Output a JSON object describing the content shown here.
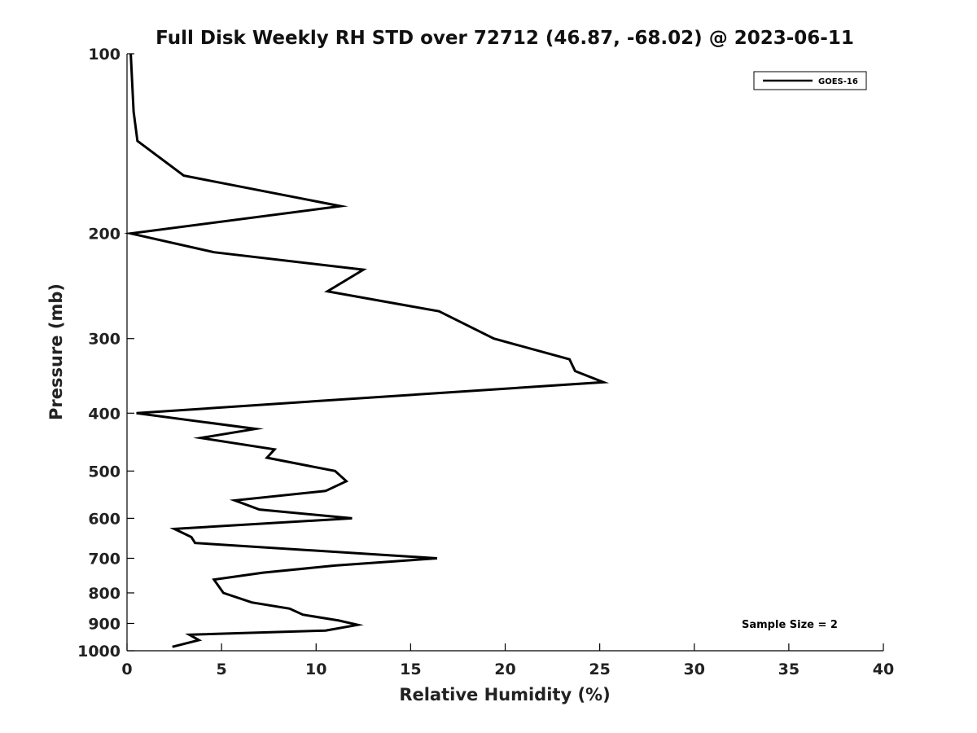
{
  "chart_data": {
    "type": "line",
    "title": "Full Disk Weekly RH STD over 72712 (46.87, -68.02) @ 2023-06-11",
    "xlabel": "Relative Humidity (%)",
    "ylabel": "Pressure (mb)",
    "xlim": [
      0,
      40
    ],
    "ylim": [
      100,
      1000
    ],
    "y_scale": "log",
    "y_reversed": true,
    "x_ticks": [
      "0",
      "5",
      "10",
      "15",
      "20",
      "25",
      "30",
      "35",
      "40"
    ],
    "y_ticks": [
      "100",
      "200",
      "300",
      "400",
      "500",
      "600",
      "700",
      "800",
      "900",
      "1000"
    ],
    "grid": false,
    "legend_position": "top-right",
    "series": [
      {
        "name": "GOES-16",
        "color": "#000000",
        "points": [
          [
            0.2,
            100
          ],
          [
            0.35,
            125
          ],
          [
            0.55,
            140
          ],
          [
            3.0,
            160
          ],
          [
            11.3,
            180
          ],
          [
            0.2,
            200
          ],
          [
            4.6,
            215
          ],
          [
            12.5,
            230
          ],
          [
            10.6,
            250
          ],
          [
            16.5,
            270
          ],
          [
            19.4,
            300
          ],
          [
            23.4,
            325
          ],
          [
            23.7,
            340
          ],
          [
            25.2,
            355
          ],
          [
            11.0,
            380
          ],
          [
            0.5,
            400
          ],
          [
            6.8,
            425
          ],
          [
            3.9,
            440
          ],
          [
            7.8,
            460
          ],
          [
            7.4,
            475
          ],
          [
            11.0,
            500
          ],
          [
            11.6,
            520
          ],
          [
            10.5,
            540
          ],
          [
            5.7,
            560
          ],
          [
            7.0,
            580
          ],
          [
            11.9,
            600
          ],
          [
            2.5,
            625
          ],
          [
            3.4,
            645
          ],
          [
            3.6,
            660
          ],
          [
            16.4,
            700
          ],
          [
            11.0,
            720
          ],
          [
            7.2,
            740
          ],
          [
            4.6,
            760
          ],
          [
            5.1,
            800
          ],
          [
            6.6,
            830
          ],
          [
            8.6,
            850
          ],
          [
            9.3,
            870
          ],
          [
            11.2,
            890
          ],
          [
            12.2,
            905
          ],
          [
            10.5,
            925
          ],
          [
            3.3,
            940
          ],
          [
            3.8,
            960
          ],
          [
            2.4,
            985
          ]
        ]
      }
    ],
    "annotations": [
      "Sample Size = 2"
    ]
  }
}
